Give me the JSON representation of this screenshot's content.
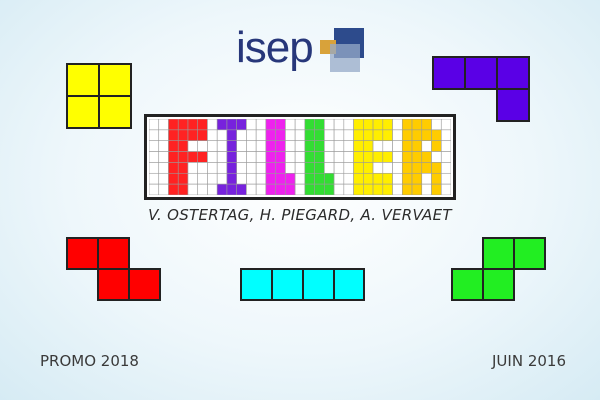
{
  "logo": {
    "text": "isep"
  },
  "title": {
    "letters": "FILLER"
  },
  "authors": "V. OSTERTAG, H. PIEGARD, A. VERVAET",
  "footer": {
    "left": "PROMO 2018",
    "right": "JUIN 2016"
  },
  "colors": {
    "logo_text": "#27377a",
    "yellow": "#ffff00",
    "purple": "#5a00e6",
    "red": "#ff0000",
    "cyan": "#00ffff",
    "green": "#22ee22",
    "letter_f": "#ff2222",
    "letter_i": "#7722dd",
    "letter_l1": "#ee22ee",
    "letter_l2": "#33dd33",
    "letter_e": "#ffee00",
    "letter_r": "#ffcc00"
  }
}
